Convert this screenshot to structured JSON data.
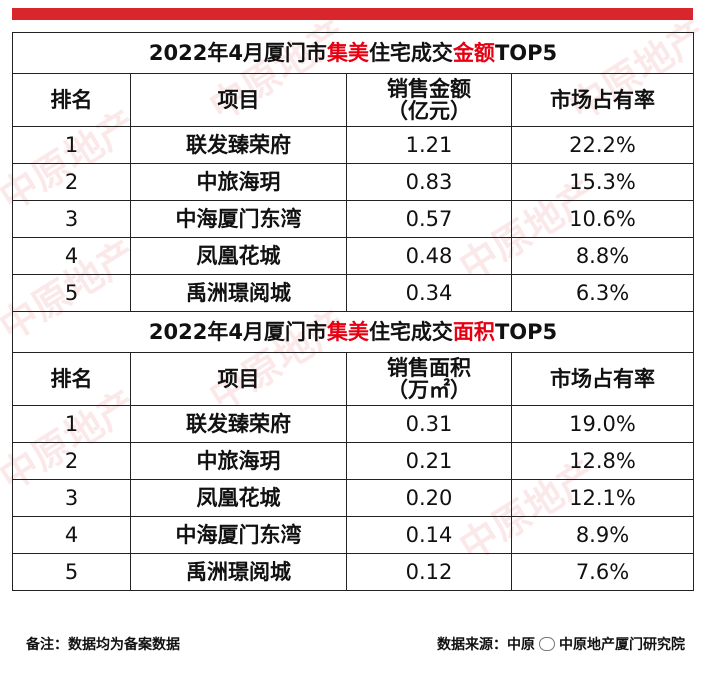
{
  "table1": {
    "title_pre": "2022年4月厦门市",
    "title_red1": "集美",
    "title_mid": "住宅成交",
    "title_red2": "金额",
    "title_post": "TOP5",
    "headers": [
      "排名",
      "项目",
      "销售金额\n（亿元）",
      "市场占有率"
    ],
    "rows": [
      [
        "1",
        "联发臻荣府",
        "1.21",
        "22.2%"
      ],
      [
        "2",
        "中旅海玥",
        "0.83",
        "15.3%"
      ],
      [
        "3",
        "中海厦门东湾",
        "0.57",
        "10.6%"
      ],
      [
        "4",
        "凤凰花城",
        "0.48",
        "8.8%"
      ],
      [
        "5",
        "禹洲璟阅城",
        "0.34",
        "6.3%"
      ]
    ]
  },
  "table2": {
    "title_pre": "2022年4月厦门市",
    "title_red1": "集美",
    "title_mid": "住宅成交",
    "title_red2": "面积",
    "title_post": "TOP5",
    "headers": [
      "排名",
      "项目",
      "销售面积\n（万㎡）",
      "市场占有率"
    ],
    "rows": [
      [
        "1",
        "联发臻荣府",
        "0.31",
        "19.0%"
      ],
      [
        "2",
        "中旅海玥",
        "0.21",
        "12.8%"
      ],
      [
        "3",
        "凤凰花城",
        "0.20",
        "12.1%"
      ],
      [
        "4",
        "中海厦门东湾",
        "0.14",
        "8.9%"
      ],
      [
        "5",
        "禹洲璟阅城",
        "0.12",
        "7.6%"
      ]
    ]
  },
  "footer": {
    "note": "备注：数据均为备案数据",
    "source": "数据来源：中原",
    "account": "中原地产厦门研究院"
  },
  "watermark": "中原地产",
  "colors": {
    "accent": "#d9262c",
    "highlight": "#e60012"
  }
}
